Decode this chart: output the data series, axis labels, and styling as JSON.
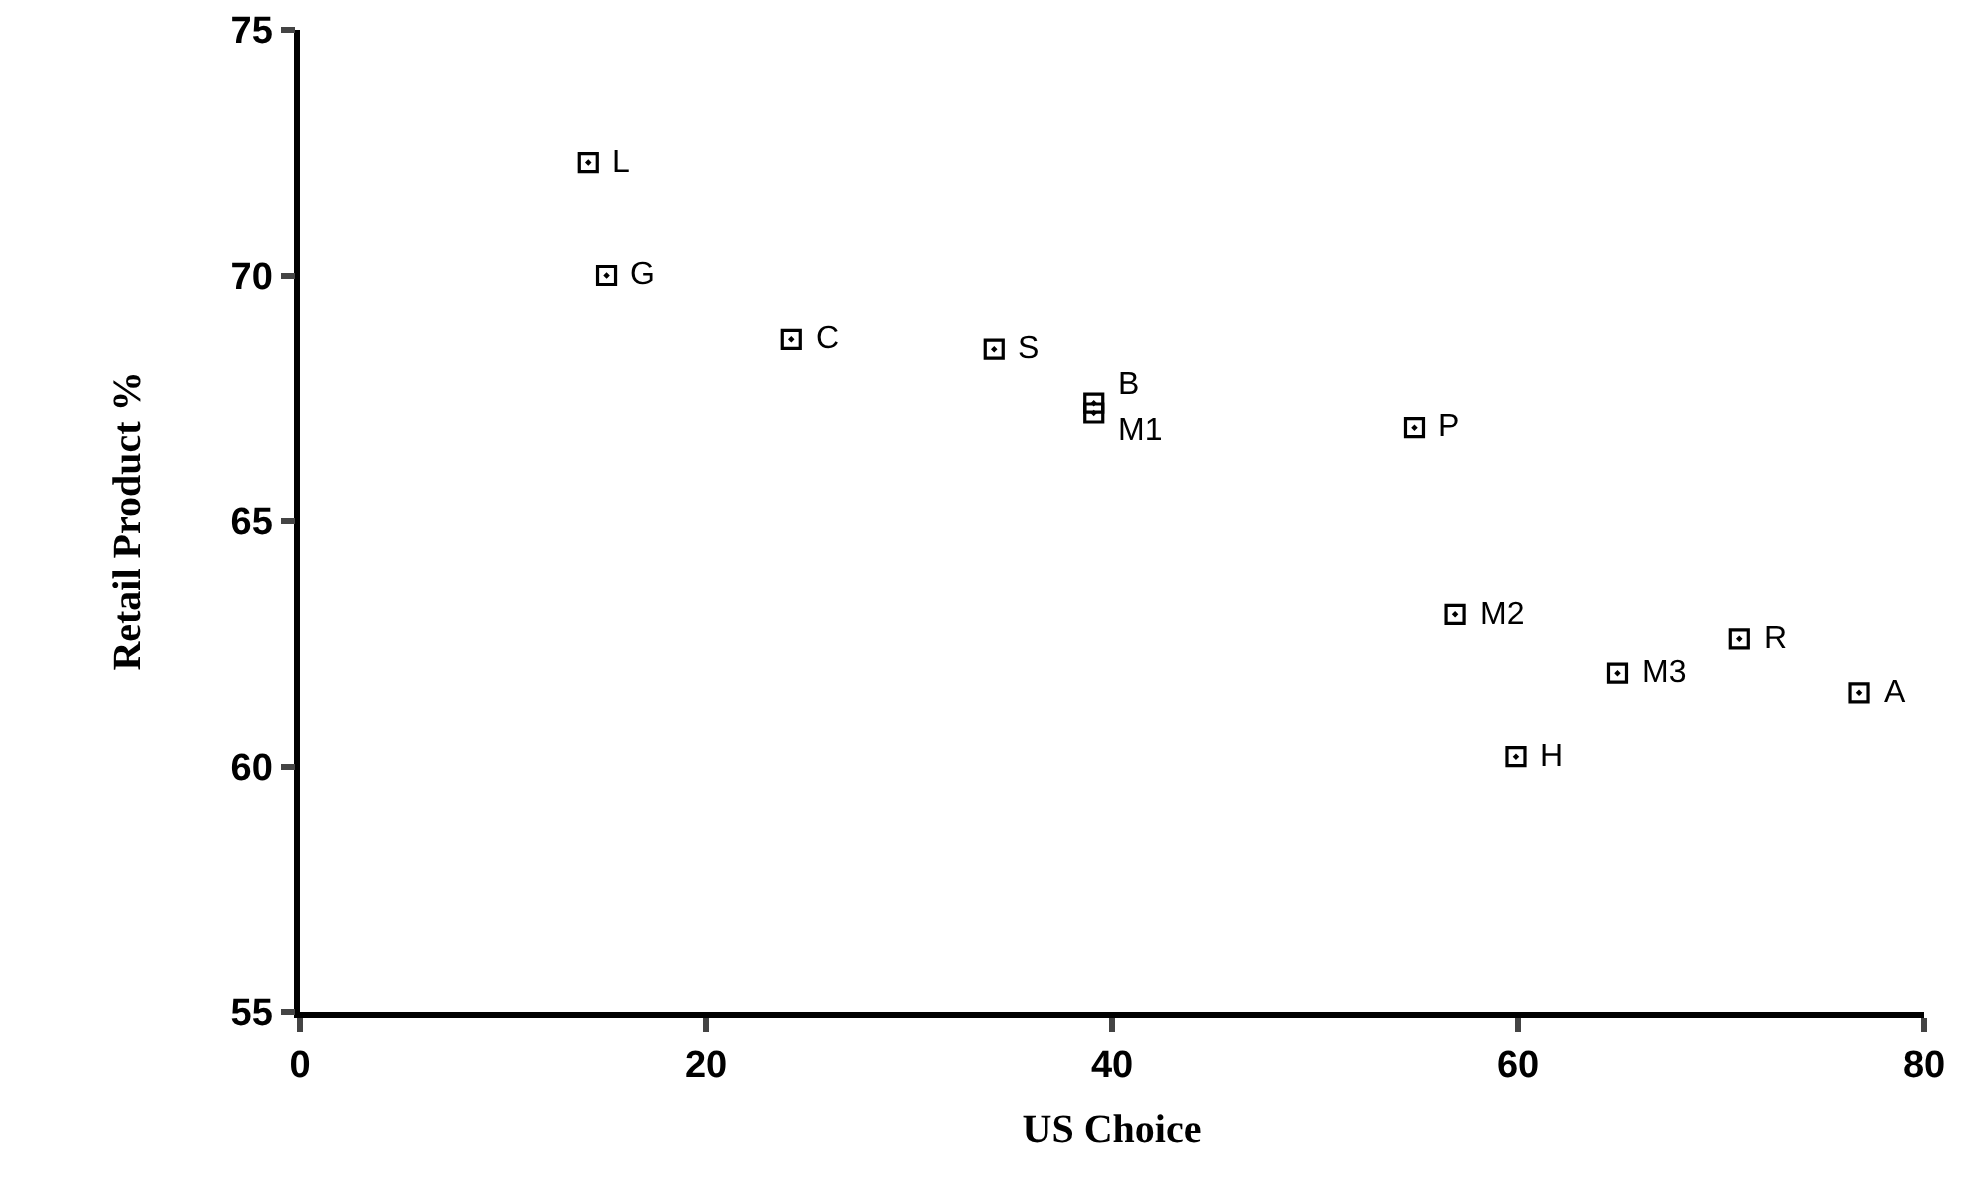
{
  "chart_data": {
    "type": "scatter",
    "xlabel": "US Choice",
    "ylabel": "Retail Product %",
    "x": [
      14.2,
      15.1,
      24.2,
      34.2,
      39.1,
      39.1,
      54.9,
      56.9,
      59.9,
      64.9,
      70.9,
      76.8
    ],
    "values": [
      72.3,
      70.0,
      68.7,
      68.5,
      67.4,
      67.2,
      66.9,
      63.1,
      60.2,
      61.9,
      62.6,
      61.5
    ],
    "color": "#000000",
    "marker": "square",
    "grid": false,
    "legend": false,
    "xlim": [
      0,
      80
    ],
    "xticks": [
      0,
      20,
      40,
      60,
      80
    ],
    "ylim": [
      55,
      75
    ],
    "yticks": [
      55,
      60,
      65,
      70,
      75
    ],
    "annotations": [
      {
        "text": "L",
        "x": 14.2,
        "y": 72.3
      },
      {
        "text": "G",
        "x": 15.1,
        "y": 70.0
      },
      {
        "text": "C",
        "x": 24.2,
        "y": 68.7
      },
      {
        "text": "S",
        "x": 34.2,
        "y": 68.5
      },
      {
        "text": "B",
        "x": 39.1,
        "y": 67.4
      },
      {
        "text": "M1",
        "x": 39.1,
        "y": 67.2
      },
      {
        "text": "P",
        "x": 54.9,
        "y": 66.9
      },
      {
        "text": "M2",
        "x": 56.9,
        "y": 63.1
      },
      {
        "text": "H",
        "x": 59.9,
        "y": 60.2
      },
      {
        "text": "M3",
        "x": 64.9,
        "y": 61.9
      },
      {
        "text": "R",
        "x": 70.9,
        "y": 62.6
      },
      {
        "text": "A",
        "x": 76.8,
        "y": 61.5
      }
    ]
  }
}
